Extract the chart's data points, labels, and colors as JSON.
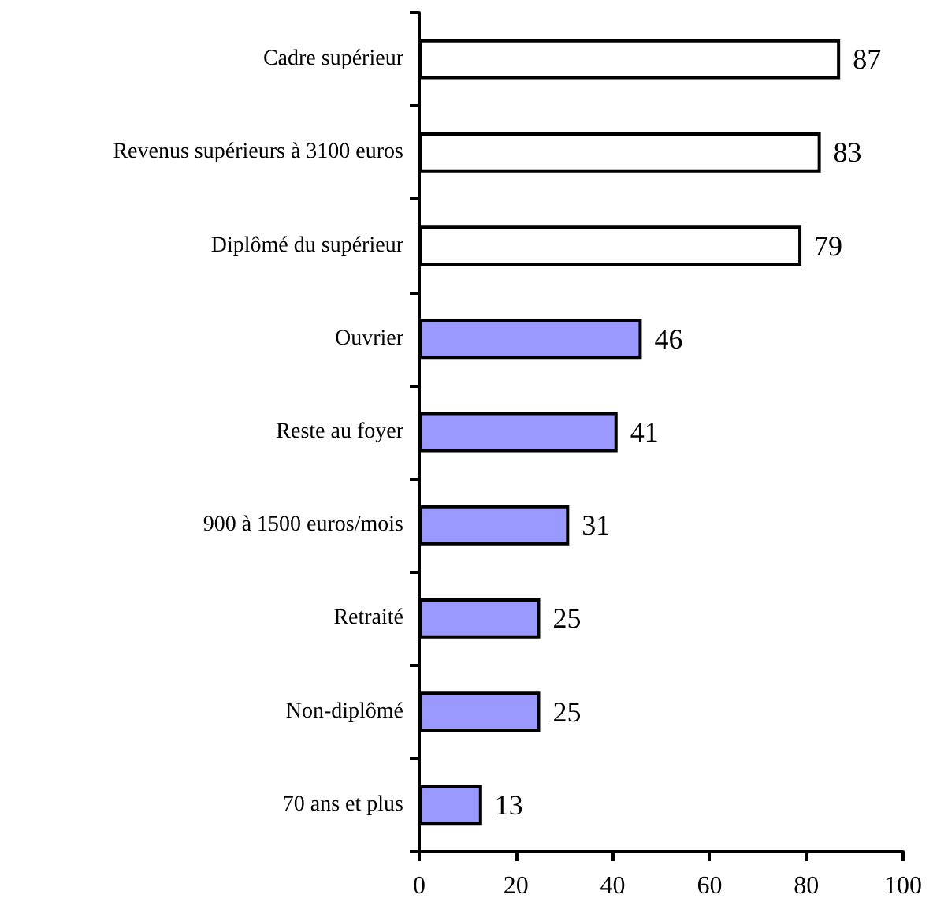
{
  "chart_data": {
    "type": "bar",
    "orientation": "horizontal",
    "categories": [
      "Cadre supérieur",
      "Revenus supérieurs à 3100 euros",
      "Diplômé du supérieur",
      "Ouvrier",
      "Reste au foyer",
      "900 à 1500 euros/mois",
      "Retraité",
      "Non-diplômé",
      "70 ans et plus"
    ],
    "values": [
      87,
      83,
      79,
      46,
      41,
      31,
      25,
      25,
      13
    ],
    "colors": [
      "#ffffff",
      "#ffffff",
      "#ffffff",
      "#9999ff",
      "#9999ff",
      "#9999ff",
      "#9999ff",
      "#9999ff",
      "#9999ff"
    ],
    "xlim": [
      0,
      100
    ],
    "xticks": [
      0,
      20,
      40,
      60,
      80,
      100
    ],
    "data_labels": true
  }
}
